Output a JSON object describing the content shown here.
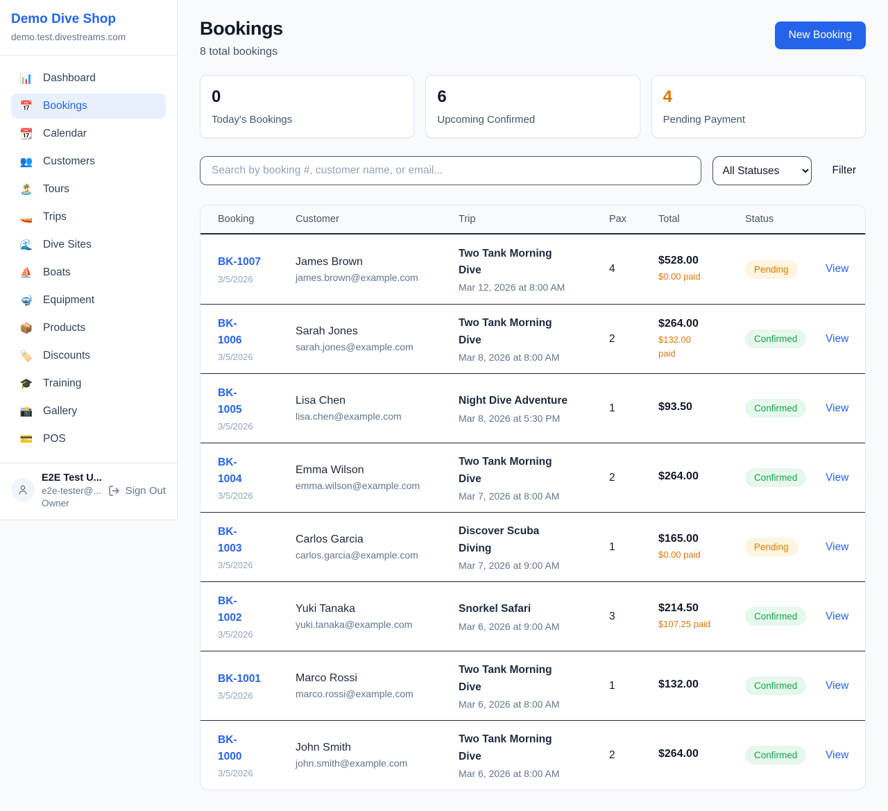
{
  "sidebar": {
    "shop_name": "Demo Dive Shop",
    "domain": "demo.test.divestreams.com",
    "items": [
      {
        "icon": "📊",
        "label": "Dashboard",
        "active": false
      },
      {
        "icon": "📅",
        "label": "Bookings",
        "active": true
      },
      {
        "icon": "📆",
        "label": "Calendar",
        "active": false
      },
      {
        "icon": "👥",
        "label": "Customers",
        "active": false
      },
      {
        "icon": "🏝️",
        "label": "Tours",
        "active": false
      },
      {
        "icon": "🚤",
        "label": "Trips",
        "active": false
      },
      {
        "icon": "🌊",
        "label": "Dive Sites",
        "active": false
      },
      {
        "icon": "⛵",
        "label": "Boats",
        "active": false
      },
      {
        "icon": "🤿",
        "label": "Equipment",
        "active": false
      },
      {
        "icon": "📦",
        "label": "Products",
        "active": false
      },
      {
        "icon": "🏷️",
        "label": "Discounts",
        "active": false
      },
      {
        "icon": "🎓",
        "label": "Training",
        "active": false
      },
      {
        "icon": "📸",
        "label": "Gallery",
        "active": false
      },
      {
        "icon": "💳",
        "label": "POS",
        "active": false
      }
    ],
    "user": {
      "name": "E2E Test U...",
      "email": "e2e-tester@...",
      "role": "Owner",
      "sign_out_label": "Sign Out"
    }
  },
  "header": {
    "title": "Bookings",
    "subtitle": "8 total bookings",
    "new_booking_label": "New Booking"
  },
  "stats": [
    {
      "value": "0",
      "label": "Today's Bookings",
      "color": "#0f172a"
    },
    {
      "value": "6",
      "label": "Upcoming Confirmed",
      "color": "#0f172a"
    },
    {
      "value": "4",
      "label": "Pending Payment",
      "color": "#d97706"
    }
  ],
  "controls": {
    "search_placeholder": "Search by booking #, customer name, or email...",
    "status_filter_value": "All Statuses",
    "filter_label": "Filter"
  },
  "status_colors": {
    "Pending": {
      "bg": "#fdf5df",
      "fg": "#d97706"
    },
    "Confirmed": {
      "bg": "#e6f7ec",
      "fg": "#16a34a"
    }
  },
  "table": {
    "columns": [
      "Booking",
      "Customer",
      "Trip",
      "Pax",
      "Total",
      "Status",
      ""
    ],
    "rows": [
      {
        "id": "BK-1007",
        "date": "3/5/2026",
        "customer": "James Brown",
        "email": "james.brown@example.com",
        "trip": "Two Tank Morning\nDive",
        "trip_date": "Mar 12, 2026 at 8:00 AM",
        "pax": "4",
        "total": "$528.00",
        "paid": "$0.00 paid",
        "status": "Pending",
        "action": "View"
      },
      {
        "id": "BK-\n1006",
        "date": "3/5/2026",
        "customer": "Sarah Jones",
        "email": "sarah.jones@example.com",
        "trip": "Two Tank Morning\nDive",
        "trip_date": "Mar 8, 2026 at 8:00 AM",
        "pax": "2",
        "total": "$264.00",
        "paid": "$132.00\npaid",
        "status": "Confirmed",
        "action": "View"
      },
      {
        "id": "BK-\n1005",
        "date": "3/5/2026",
        "customer": "Lisa Chen",
        "email": "lisa.chen@example.com",
        "trip": "Night Dive Adventure",
        "trip_date": "Mar 8, 2026 at 5:30 PM",
        "pax": "1",
        "total": "$93.50",
        "paid": "",
        "status": "Confirmed",
        "action": "View"
      },
      {
        "id": "BK-\n1004",
        "date": "3/5/2026",
        "customer": "Emma Wilson",
        "email": "emma.wilson@example.com",
        "trip": "Two Tank Morning\nDive",
        "trip_date": "Mar 7, 2026 at 8:00 AM",
        "pax": "2",
        "total": "$264.00",
        "paid": "",
        "status": "Confirmed",
        "action": "View"
      },
      {
        "id": "BK-\n1003",
        "date": "3/5/2026",
        "customer": "Carlos Garcia",
        "email": "carlos.garcia@example.com",
        "trip": "Discover Scuba\nDiving",
        "trip_date": "Mar 7, 2026 at 9:00 AM",
        "pax": "1",
        "total": "$165.00",
        "paid": "$0.00 paid",
        "status": "Pending",
        "action": "View"
      },
      {
        "id": "BK-\n1002",
        "date": "3/5/2026",
        "customer": "Yuki Tanaka",
        "email": "yuki.tanaka@example.com",
        "trip": "Snorkel Safari",
        "trip_date": "Mar 6, 2026 at 9:00 AM",
        "pax": "3",
        "total": "$214.50",
        "paid": "$107.25 paid",
        "status": "Confirmed",
        "action": "View"
      },
      {
        "id": "BK-1001",
        "date": "3/5/2026",
        "customer": "Marco Rossi",
        "email": "marco.rossi@example.com",
        "trip": "Two Tank Morning\nDive",
        "trip_date": "Mar 6, 2026 at 8:00 AM",
        "pax": "1",
        "total": "$132.00",
        "paid": "",
        "status": "Confirmed",
        "action": "View"
      },
      {
        "id": "BK-\n1000",
        "date": "3/5/2026",
        "customer": "John Smith",
        "email": "john.smith@example.com",
        "trip": "Two Tank Morning\nDive",
        "trip_date": "Mar 6, 2026 at 8:00 AM",
        "pax": "2",
        "total": "$264.00",
        "paid": "",
        "status": "Confirmed",
        "action": "View"
      }
    ]
  }
}
